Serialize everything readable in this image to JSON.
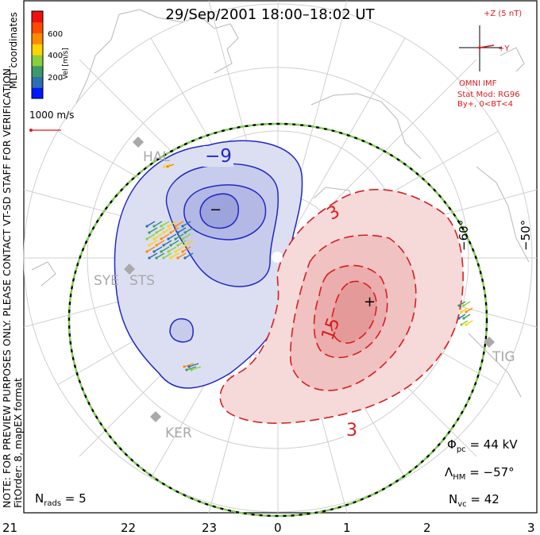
{
  "title": "29/Sep/2001  18:00–18:02  UT",
  "notes": {
    "preview": "NOTE: FOR PREVIEW PURPOSES ONLY. PLEASE CONTACT VT-SD STAFF FOR VERIFICATION.",
    "fit_order": "FitOrder: 8, mapEX format",
    "coords": "MLT coordinates"
  },
  "colorbar": {
    "label": "Vel [m/s]",
    "ticks": [
      "600",
      "400",
      "200"
    ],
    "colors": [
      "#0018ff",
      "#2d6fb0",
      "#3a9a6a",
      "#8ad03a",
      "#ffd400",
      "#ff8a00",
      "#ff4a00",
      "#f01010"
    ]
  },
  "scale_vector": {
    "label": "1000 m/s"
  },
  "imf": {
    "z_label": "+Z (5 nT)",
    "y_label": "+Y",
    "source": "OMNI IMF",
    "model": "Stat Mod: RG96",
    "condition": "By+, 0<BT<4"
  },
  "lat_labels": [
    "−60°",
    "−50°"
  ],
  "contours": {
    "neg_label": "−9",
    "pos_label_1": "3",
    "pos_label_2": "15",
    "pos_label_3": "3",
    "min_marker": "−",
    "max_marker": "+"
  },
  "stats": {
    "phi_main": "Φ",
    "phi_sub": "pc",
    "phi_value": " = 44 kV",
    "lambda_main": "Λ",
    "lambda_sub": "HM",
    "lambda_value": " = −57°",
    "nvc_main": "N",
    "nvc_sub": "vc",
    "nvc_value": " = 42",
    "nrads_main": "N",
    "nrads_sub": "rads",
    "nrads_value": " = 5"
  },
  "stations": [
    "HAL",
    "SYE",
    "STS",
    "TIG",
    "KER"
  ],
  "mlt_labels": [
    "21",
    "22",
    "23",
    "0",
    "1",
    "2",
    "3"
  ],
  "colors": {
    "negative_contour": "#1e28c8",
    "positive_contour": "#d81e1e",
    "hmb": "#7ad14a",
    "imf": "#e0191b"
  }
}
